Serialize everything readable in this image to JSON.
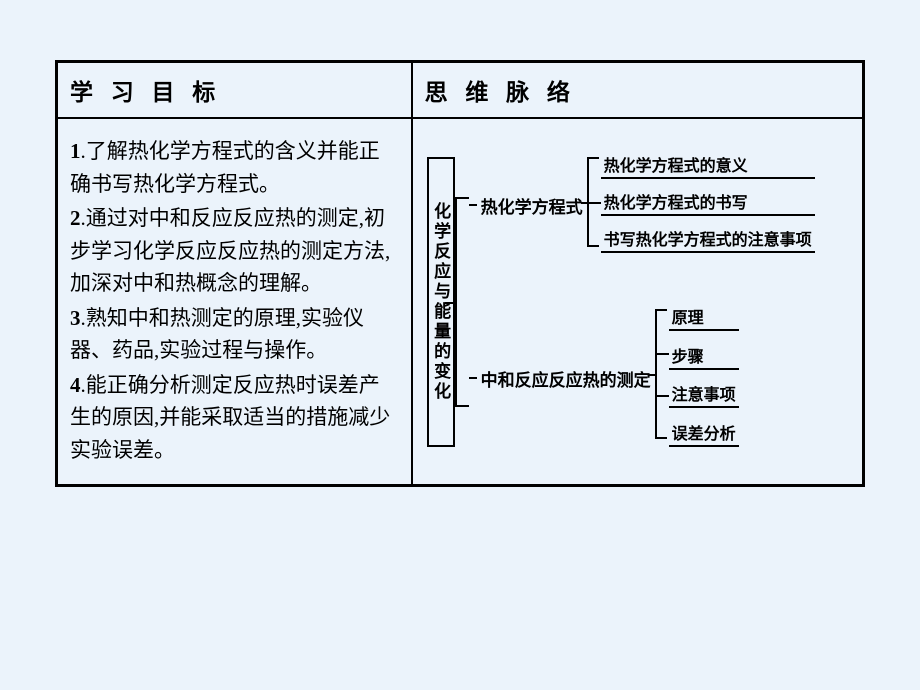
{
  "page": {
    "background_color": "#ebf3fb",
    "border_color": "#000000",
    "text_color": "#000000"
  },
  "headers": {
    "left": "学 习 目 标",
    "right": "思 维 脉 络"
  },
  "objectives": [
    {
      "num": "1",
      "text": ".了解热化学方程式的含义并能正确书写热化学方程式。"
    },
    {
      "num": "2",
      "text": ".通过对中和反应反应热的测定,初步学习化学反应反应热的测定方法,加深对中和热概念的理解。"
    },
    {
      "num": "3",
      "text": ".熟知中和热测定的原理,实验仪器、药品,实验过程与操作。"
    },
    {
      "num": "4",
      "text": ".能正确分析测定反应热时误差产生的原因,并能采取适当的措施减少实验误差。"
    }
  ],
  "diagram": {
    "root": "化学反应与能量的变化",
    "branches": [
      {
        "label": "热化学方程式",
        "leaves": [
          "热化学方程式的意义",
          "热化学方程式的书写",
          "书写热化学方程式的注意事项"
        ]
      },
      {
        "label": "中和反应反应热的测定",
        "leaves": [
          "原理",
          "步骤",
          "注意事项",
          "误差分析"
        ]
      }
    ]
  }
}
